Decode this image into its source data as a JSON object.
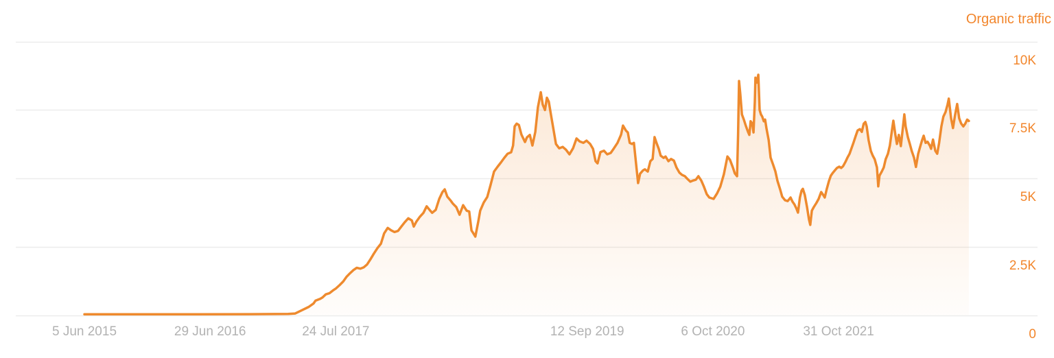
{
  "chart": {
    "legend_label": "Organic traffic",
    "colors": {
      "accent": "#f2862c",
      "line": "#ee8a2e",
      "fill_top": "rgba(238,138,46,0.20)",
      "fill_bottom": "rgba(238,138,46,0.02)",
      "grid": "#ececec",
      "axis_text": "#b2b2b2"
    }
  },
  "chart_data": {
    "type": "area",
    "title": "Organic traffic",
    "legend_position": "top-right",
    "grid": "horizontal",
    "x_axis": {
      "unit": "days since 5 Jun 2015",
      "ticks": [
        {
          "label": "5 Jun 2015",
          "t": 0
        },
        {
          "label": "29 Jun 2016",
          "t": 390
        },
        {
          "label": "24 Jul 2017",
          "t": 780
        },
        {
          "label": "12 Sep 2019",
          "t": 1560
        },
        {
          "label": "6 Oct 2020",
          "t": 1950
        },
        {
          "label": "31 Oct 2021",
          "t": 2340
        }
      ]
    },
    "y_axis": {
      "label": "Organic traffic",
      "range": [
        0,
        10000
      ],
      "ticks": [
        {
          "label": "10K",
          "v": 10000
        },
        {
          "label": "7.5K",
          "v": 7500
        },
        {
          "label": "5K",
          "v": 5000
        },
        {
          "label": "2.5K",
          "v": 2500
        },
        {
          "label": "0",
          "v": 0
        }
      ]
    },
    "series": [
      {
        "name": "Organic traffic",
        "points": [
          [
            0,
            30
          ],
          [
            170,
            30
          ],
          [
            340,
            32
          ],
          [
            510,
            35
          ],
          [
            632,
            45
          ],
          [
            654,
            60
          ],
          [
            675,
            180
          ],
          [
            696,
            300
          ],
          [
            711,
            430
          ],
          [
            717,
            530
          ],
          [
            732,
            600
          ],
          [
            739,
            650
          ],
          [
            749,
            760
          ],
          [
            760,
            800
          ],
          [
            771,
            900
          ],
          [
            781,
            980
          ],
          [
            792,
            1100
          ],
          [
            803,
            1230
          ],
          [
            813,
            1400
          ],
          [
            824,
            1530
          ],
          [
            835,
            1650
          ],
          [
            845,
            1730
          ],
          [
            856,
            1700
          ],
          [
            867,
            1750
          ],
          [
            877,
            1850
          ],
          [
            888,
            2050
          ],
          [
            898,
            2250
          ],
          [
            909,
            2450
          ],
          [
            920,
            2610
          ],
          [
            930,
            2990
          ],
          [
            941,
            3190
          ],
          [
            952,
            3100
          ],
          [
            962,
            3040
          ],
          [
            973,
            3080
          ],
          [
            984,
            3250
          ],
          [
            994,
            3400
          ],
          [
            1005,
            3540
          ],
          [
            1016,
            3460
          ],
          [
            1022,
            3240
          ],
          [
            1030,
            3420
          ],
          [
            1041,
            3600
          ],
          [
            1052,
            3740
          ],
          [
            1062,
            3980
          ],
          [
            1073,
            3820
          ],
          [
            1079,
            3740
          ],
          [
            1090,
            3850
          ],
          [
            1101,
            4250
          ],
          [
            1111,
            4500
          ],
          [
            1118,
            4600
          ],
          [
            1126,
            4330
          ],
          [
            1137,
            4180
          ],
          [
            1143,
            4080
          ],
          [
            1154,
            3950
          ],
          [
            1164,
            3670
          ],
          [
            1175,
            4020
          ],
          [
            1186,
            3820
          ],
          [
            1194,
            3790
          ],
          [
            1201,
            3100
          ],
          [
            1207,
            2990
          ],
          [
            1213,
            2870
          ],
          [
            1222,
            3420
          ],
          [
            1228,
            3820
          ],
          [
            1239,
            4120
          ],
          [
            1250,
            4320
          ],
          [
            1260,
            4750
          ],
          [
            1271,
            5250
          ],
          [
            1282,
            5430
          ],
          [
            1292,
            5580
          ],
          [
            1303,
            5755
          ],
          [
            1313,
            5900
          ],
          [
            1324,
            5955
          ],
          [
            1330,
            6200
          ],
          [
            1335,
            6900
          ],
          [
            1341,
            7000
          ],
          [
            1348,
            6950
          ],
          [
            1356,
            6600
          ],
          [
            1367,
            6330
          ],
          [
            1373,
            6500
          ],
          [
            1382,
            6590
          ],
          [
            1390,
            6200
          ],
          [
            1399,
            6700
          ],
          [
            1407,
            7600
          ],
          [
            1416,
            8150
          ],
          [
            1422,
            7700
          ],
          [
            1429,
            7500
          ],
          [
            1435,
            7950
          ],
          [
            1441,
            7800
          ],
          [
            1448,
            7300
          ],
          [
            1454,
            6890
          ],
          [
            1463,
            6260
          ],
          [
            1473,
            6100
          ],
          [
            1484,
            6150
          ],
          [
            1494,
            6050
          ],
          [
            1505,
            5880
          ],
          [
            1516,
            6100
          ],
          [
            1527,
            6460
          ],
          [
            1537,
            6350
          ],
          [
            1548,
            6300
          ],
          [
            1558,
            6380
          ],
          [
            1569,
            6260
          ],
          [
            1578,
            6080
          ],
          [
            1586,
            5630
          ],
          [
            1592,
            5550
          ],
          [
            1601,
            5960
          ],
          [
            1612,
            6010
          ],
          [
            1622,
            5880
          ],
          [
            1633,
            5930
          ],
          [
            1643,
            6100
          ],
          [
            1654,
            6300
          ],
          [
            1665,
            6600
          ],
          [
            1671,
            6930
          ],
          [
            1680,
            6750
          ],
          [
            1686,
            6680
          ],
          [
            1692,
            6300
          ],
          [
            1699,
            6260
          ],
          [
            1705,
            6300
          ],
          [
            1712,
            5500
          ],
          [
            1718,
            4830
          ],
          [
            1724,
            5170
          ],
          [
            1733,
            5290
          ],
          [
            1739,
            5330
          ],
          [
            1748,
            5250
          ],
          [
            1756,
            5630
          ],
          [
            1763,
            5710
          ],
          [
            1769,
            6510
          ],
          [
            1775,
            6300
          ],
          [
            1782,
            6080
          ],
          [
            1788,
            5830
          ],
          [
            1797,
            5750
          ],
          [
            1803,
            5800
          ],
          [
            1812,
            5630
          ],
          [
            1820,
            5710
          ],
          [
            1829,
            5650
          ],
          [
            1837,
            5400
          ],
          [
            1846,
            5210
          ],
          [
            1854,
            5130
          ],
          [
            1863,
            5080
          ],
          [
            1871,
            4980
          ],
          [
            1880,
            4880
          ],
          [
            1888,
            4920
          ],
          [
            1897,
            4950
          ],
          [
            1905,
            5080
          ],
          [
            1914,
            4920
          ],
          [
            1922,
            4700
          ],
          [
            1931,
            4420
          ],
          [
            1939,
            4300
          ],
          [
            1952,
            4250
          ],
          [
            1963,
            4450
          ],
          [
            1973,
            4700
          ],
          [
            1984,
            5150
          ],
          [
            1995,
            5800
          ],
          [
            2003,
            5680
          ],
          [
            2012,
            5400
          ],
          [
            2018,
            5180
          ],
          [
            2025,
            5080
          ],
          [
            2028,
            6600
          ],
          [
            2031,
            8560
          ],
          [
            2035,
            8100
          ],
          [
            2040,
            7340
          ],
          [
            2046,
            7150
          ],
          [
            2052,
            6930
          ],
          [
            2059,
            6700
          ],
          [
            2063,
            6590
          ],
          [
            2067,
            7090
          ],
          [
            2072,
            7010
          ],
          [
            2076,
            6680
          ],
          [
            2080,
            7800
          ],
          [
            2082,
            8680
          ],
          [
            2086,
            8500
          ],
          [
            2091,
            8790
          ],
          [
            2095,
            7500
          ],
          [
            2099,
            7340
          ],
          [
            2103,
            7260
          ],
          [
            2108,
            7090
          ],
          [
            2112,
            7150
          ],
          [
            2116,
            6840
          ],
          [
            2123,
            6400
          ],
          [
            2129,
            5760
          ],
          [
            2137,
            5500
          ],
          [
            2144,
            5250
          ],
          [
            2150,
            4920
          ],
          [
            2159,
            4580
          ],
          [
            2165,
            4330
          ],
          [
            2174,
            4200
          ],
          [
            2182,
            4170
          ],
          [
            2191,
            4300
          ],
          [
            2197,
            4150
          ],
          [
            2203,
            4050
          ],
          [
            2209,
            3900
          ],
          [
            2214,
            3750
          ],
          [
            2220,
            4300
          ],
          [
            2225,
            4550
          ],
          [
            2229,
            4620
          ],
          [
            2235,
            4400
          ],
          [
            2242,
            3950
          ],
          [
            2248,
            3500
          ],
          [
            2252,
            3300
          ],
          [
            2257,
            3820
          ],
          [
            2263,
            3950
          ],
          [
            2271,
            4100
          ],
          [
            2278,
            4250
          ],
          [
            2286,
            4500
          ],
          [
            2293,
            4380
          ],
          [
            2297,
            4300
          ],
          [
            2303,
            4600
          ],
          [
            2310,
            4900
          ],
          [
            2316,
            5100
          ],
          [
            2322,
            5200
          ],
          [
            2329,
            5300
          ],
          [
            2335,
            5380
          ],
          [
            2342,
            5430
          ],
          [
            2348,
            5380
          ],
          [
            2354,
            5450
          ],
          [
            2361,
            5600
          ],
          [
            2367,
            5750
          ],
          [
            2374,
            5900
          ],
          [
            2380,
            6100
          ],
          [
            2386,
            6300
          ],
          [
            2393,
            6550
          ],
          [
            2399,
            6750
          ],
          [
            2406,
            6800
          ],
          [
            2412,
            6700
          ],
          [
            2418,
            7000
          ],
          [
            2423,
            7060
          ],
          [
            2427,
            6900
          ],
          [
            2433,
            6400
          ],
          [
            2440,
            6000
          ],
          [
            2446,
            5830
          ],
          [
            2452,
            5700
          ],
          [
            2459,
            5400
          ],
          [
            2463,
            4710
          ],
          [
            2467,
            5100
          ],
          [
            2474,
            5250
          ],
          [
            2480,
            5400
          ],
          [
            2486,
            5700
          ],
          [
            2493,
            5900
          ],
          [
            2499,
            6200
          ],
          [
            2506,
            6800
          ],
          [
            2510,
            7110
          ],
          [
            2516,
            6600
          ],
          [
            2521,
            6260
          ],
          [
            2527,
            6590
          ],
          [
            2533,
            6180
          ],
          [
            2538,
            6700
          ],
          [
            2544,
            7340
          ],
          [
            2548,
            6900
          ],
          [
            2555,
            6500
          ],
          [
            2561,
            6260
          ],
          [
            2567,
            6000
          ],
          [
            2574,
            5760
          ],
          [
            2580,
            5420
          ],
          [
            2587,
            5900
          ],
          [
            2593,
            6150
          ],
          [
            2599,
            6400
          ],
          [
            2604,
            6560
          ],
          [
            2610,
            6300
          ],
          [
            2616,
            6340
          ],
          [
            2623,
            6200
          ],
          [
            2627,
            6080
          ],
          [
            2633,
            6420
          ],
          [
            2640,
            6010
          ],
          [
            2646,
            5900
          ],
          [
            2652,
            6300
          ],
          [
            2659,
            6900
          ],
          [
            2665,
            7260
          ],
          [
            2672,
            7430
          ],
          [
            2678,
            7700
          ],
          [
            2682,
            7915
          ],
          [
            2689,
            7200
          ],
          [
            2695,
            6840
          ],
          [
            2701,
            7300
          ],
          [
            2708,
            7720
          ],
          [
            2714,
            7200
          ],
          [
            2720,
            7010
          ],
          [
            2727,
            6900
          ],
          [
            2733,
            7000
          ],
          [
            2739,
            7150
          ],
          [
            2744,
            7100
          ]
        ]
      }
    ]
  }
}
